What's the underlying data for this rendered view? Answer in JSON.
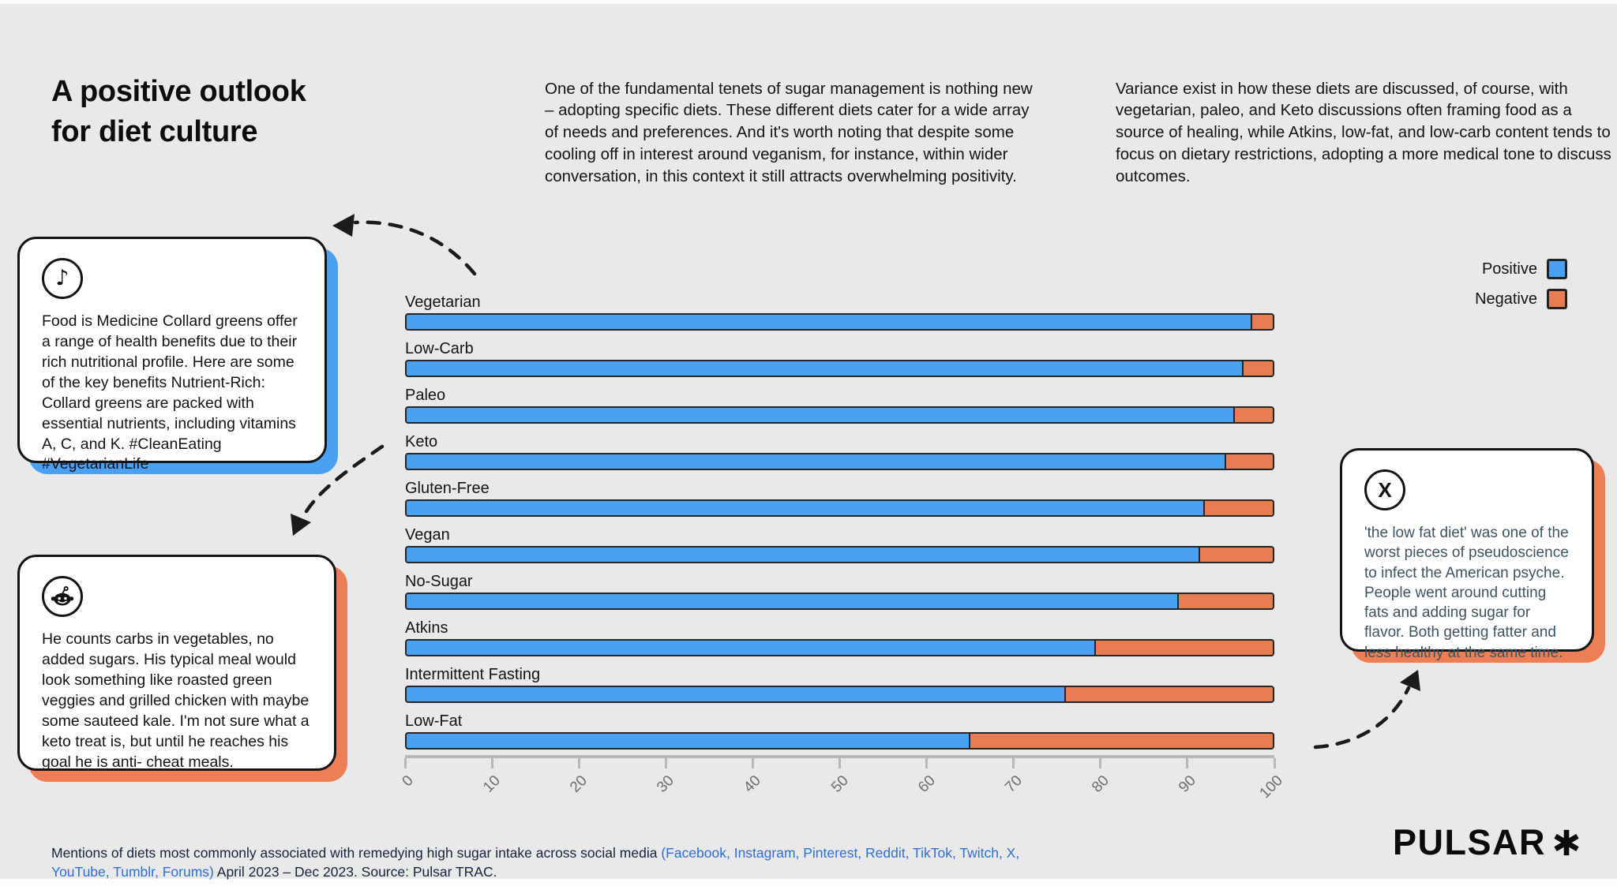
{
  "title": "A positive outlook\nfor diet culture",
  "intro": {
    "paragraph_1": "One of the fundamental tenets of sugar management is nothing new – adopting specific diets. These different diets cater for a wide array of needs and preferences. And it's worth noting that despite some cooling off in interest around veganism, for instance, within wider conversation, in this context it still attracts overwhelming positivity.",
    "paragraph_2": "Variance exist in how these diets are discussed, of course, with vegetarian, paleo, and Keto discussions often framing food as a source of healing, while Atkins, low-fat, and low-carb content tends to focus on dietary restrictions, adopting a more medical tone to discuss outcomes."
  },
  "callouts": {
    "tiktok": {
      "platform": "TikTok",
      "icon": "tiktok-note-icon",
      "quote": "Food is Medicine Collard greens offer a range of health benefits due to their rich nutritional profile. Here are some of the key benefits Nutrient-Rich: Collard greens are packed with essential nutrients, including vitamins A, C, and K. #CleanEating #VegetarianLife"
    },
    "reddit": {
      "platform": "Reddit",
      "icon": "reddit-alien-icon",
      "quote": "He counts carbs in vegetables, no added sugars. His typical meal would look something like roasted green veggies and grilled chicken with maybe some sauteed kale. I'm not sure what a keto treat is, but until he reaches his goal he is anti- cheat meals."
    },
    "x": {
      "platform": "X",
      "icon": "x-logo-icon",
      "quote": "'the low fat diet' was one of the worst pieces of pseudoscience to infect the American psyche. People went around cutting fats and adding sugar for flavor. Both getting fatter and less healthy at the same time."
    }
  },
  "legend": {
    "position": "top-right",
    "items": [
      {
        "label": "Positive",
        "color": "#4aa1f2"
      },
      {
        "label": "Negative",
        "color": "#e87d52"
      }
    ]
  },
  "chart_data": {
    "type": "bar",
    "orientation": "horizontal",
    "stacked": true,
    "categories": [
      "Vegetarian",
      "Low-Carb",
      "Paleo",
      "Keto",
      "Gluten-Free",
      "Vegan",
      "No-Sugar",
      "Atkins",
      "Intermittent Fasting",
      "Low-Fat"
    ],
    "series": [
      {
        "name": "Positive",
        "color": "#4aa1f2",
        "values": [
          97.5,
          96.5,
          95.5,
          94.5,
          92,
          91.5,
          89,
          79.5,
          76,
          65
        ]
      },
      {
        "name": "Negative",
        "color": "#e87d52",
        "values": [
          2.5,
          3.5,
          4.5,
          5.5,
          8,
          8.5,
          11,
          20.5,
          24,
          35
        ]
      }
    ],
    "xlim": [
      0,
      100
    ],
    "x_ticks": [
      0,
      10,
      20,
      30,
      40,
      50,
      60,
      70,
      80,
      90,
      100
    ],
    "grid": false,
    "legend_position": "top-right"
  },
  "footer": {
    "text_before_links": "Mentions of diets most commonly associated with remedying high sugar intake across social media ",
    "social_list": "(Facebook, Instagram, Pinterest, Reddit, TikTok, Twitch, X, YouTube, Tumblr, Forums)",
    "text_after_links": " April 2023 – Dec 2023. Source: Pulsar TRAC."
  },
  "logo": {
    "text": "PULSAR",
    "mark": "asterisk"
  },
  "colors": {
    "background": "#e9e9e9",
    "positive": "#4aa1f2",
    "negative": "#e87d52",
    "bar_border": "#262626",
    "axis": "#b8b8b8",
    "tick_label": "#6e6e6e",
    "footer_text": "#16233f",
    "footer_link": "#2d6ed9",
    "x_quote_text": "#3e5462"
  }
}
